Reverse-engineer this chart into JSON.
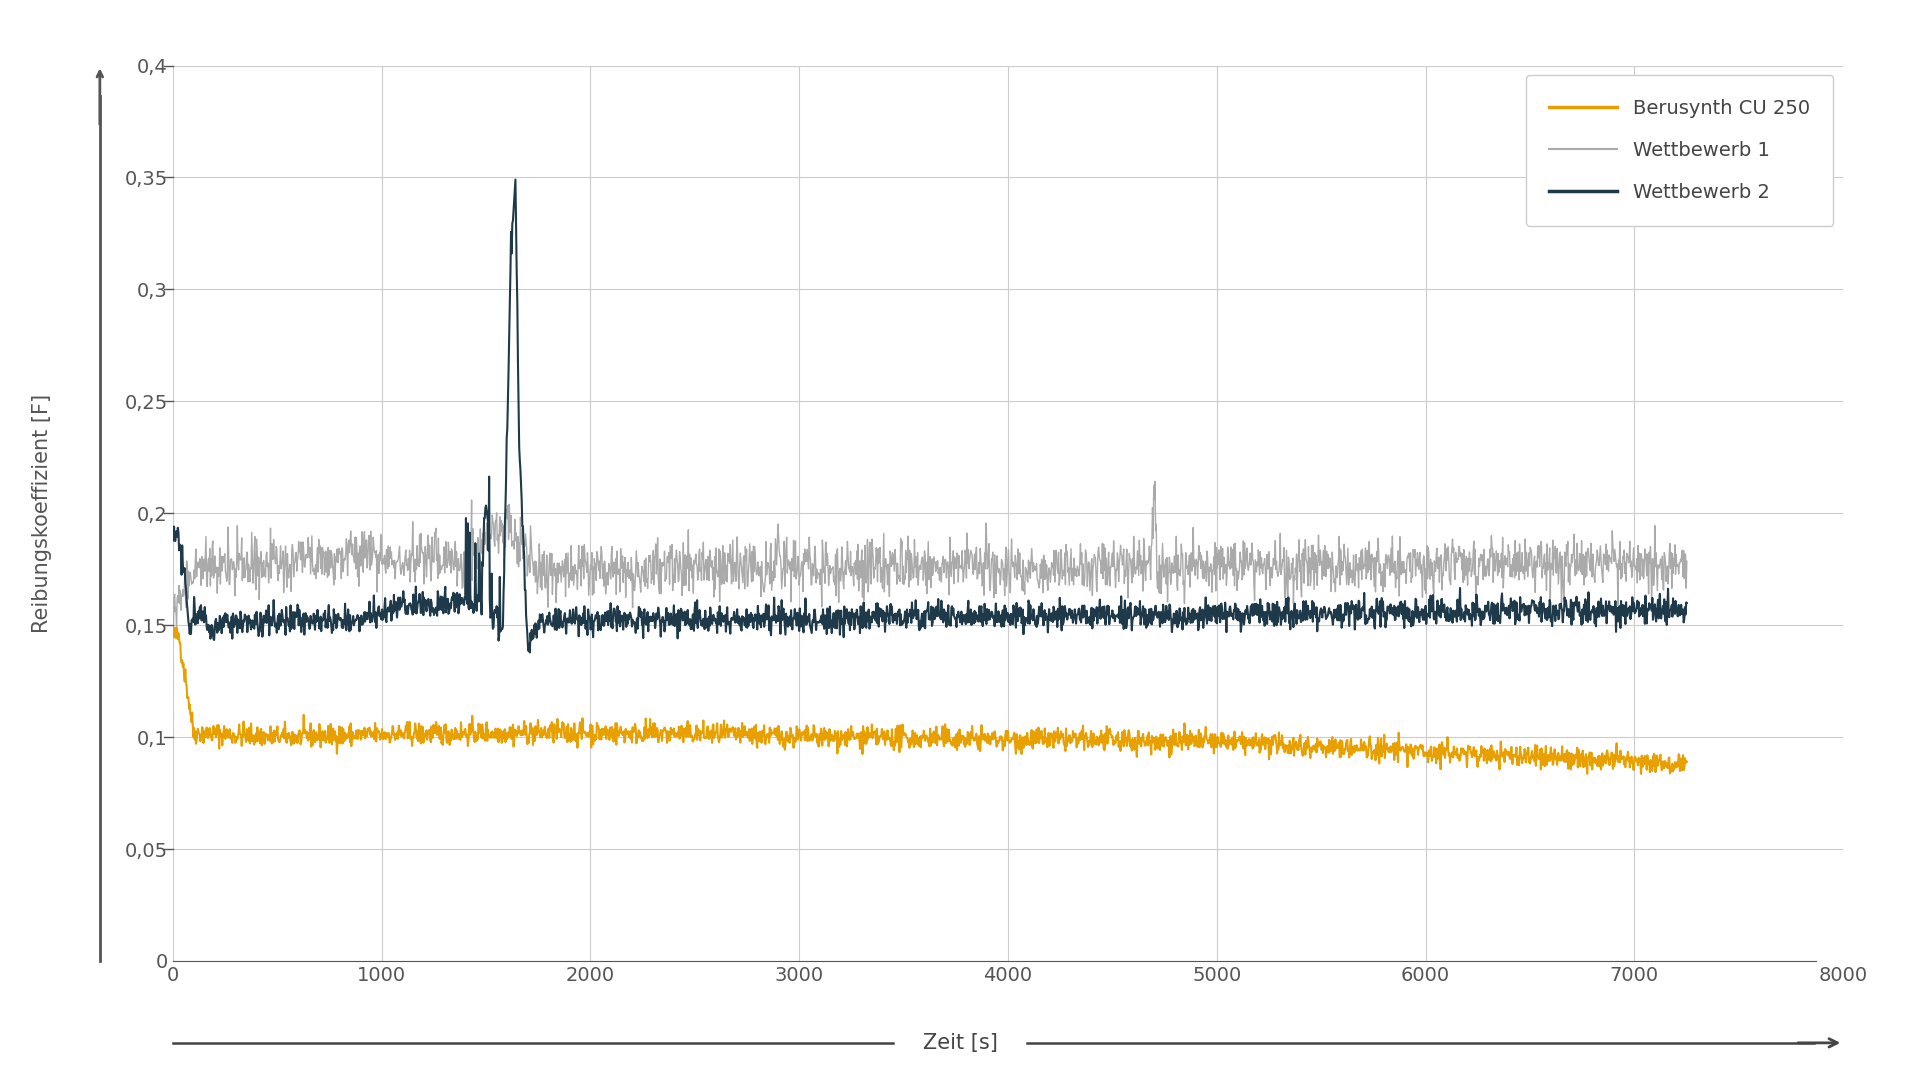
{
  "xlabel": "Zeit [s]",
  "ylabel": "Reibungskoeffizient [F]",
  "xlim": [
    0,
    8000
  ],
  "ylim": [
    0,
    0.4
  ],
  "xticks": [
    0,
    1000,
    2000,
    3000,
    4000,
    5000,
    6000,
    7000,
    8000
  ],
  "yticks": [
    0,
    0.05,
    0.1,
    0.15,
    0.2,
    0.25,
    0.3,
    0.35,
    0.4
  ],
  "ytick_labels": [
    "0",
    "0,05",
    "0,1",
    "0,15",
    "0,2",
    "0,25",
    "0,3",
    "0,35",
    "0,4"
  ],
  "color_gold": "#E8A000",
  "color_gray": "#AAAAAA",
  "color_dark": "#1E3A4A",
  "background_color": "#FFFFFF",
  "grid_color": "#CCCCCC",
  "legend_labels": [
    "Berusynth CU 250",
    "Wettbewerb 1",
    "Wettbewerb 2"
  ],
  "axis_color": "#555555",
  "tick_fontsize": 14,
  "label_fontsize": 15
}
